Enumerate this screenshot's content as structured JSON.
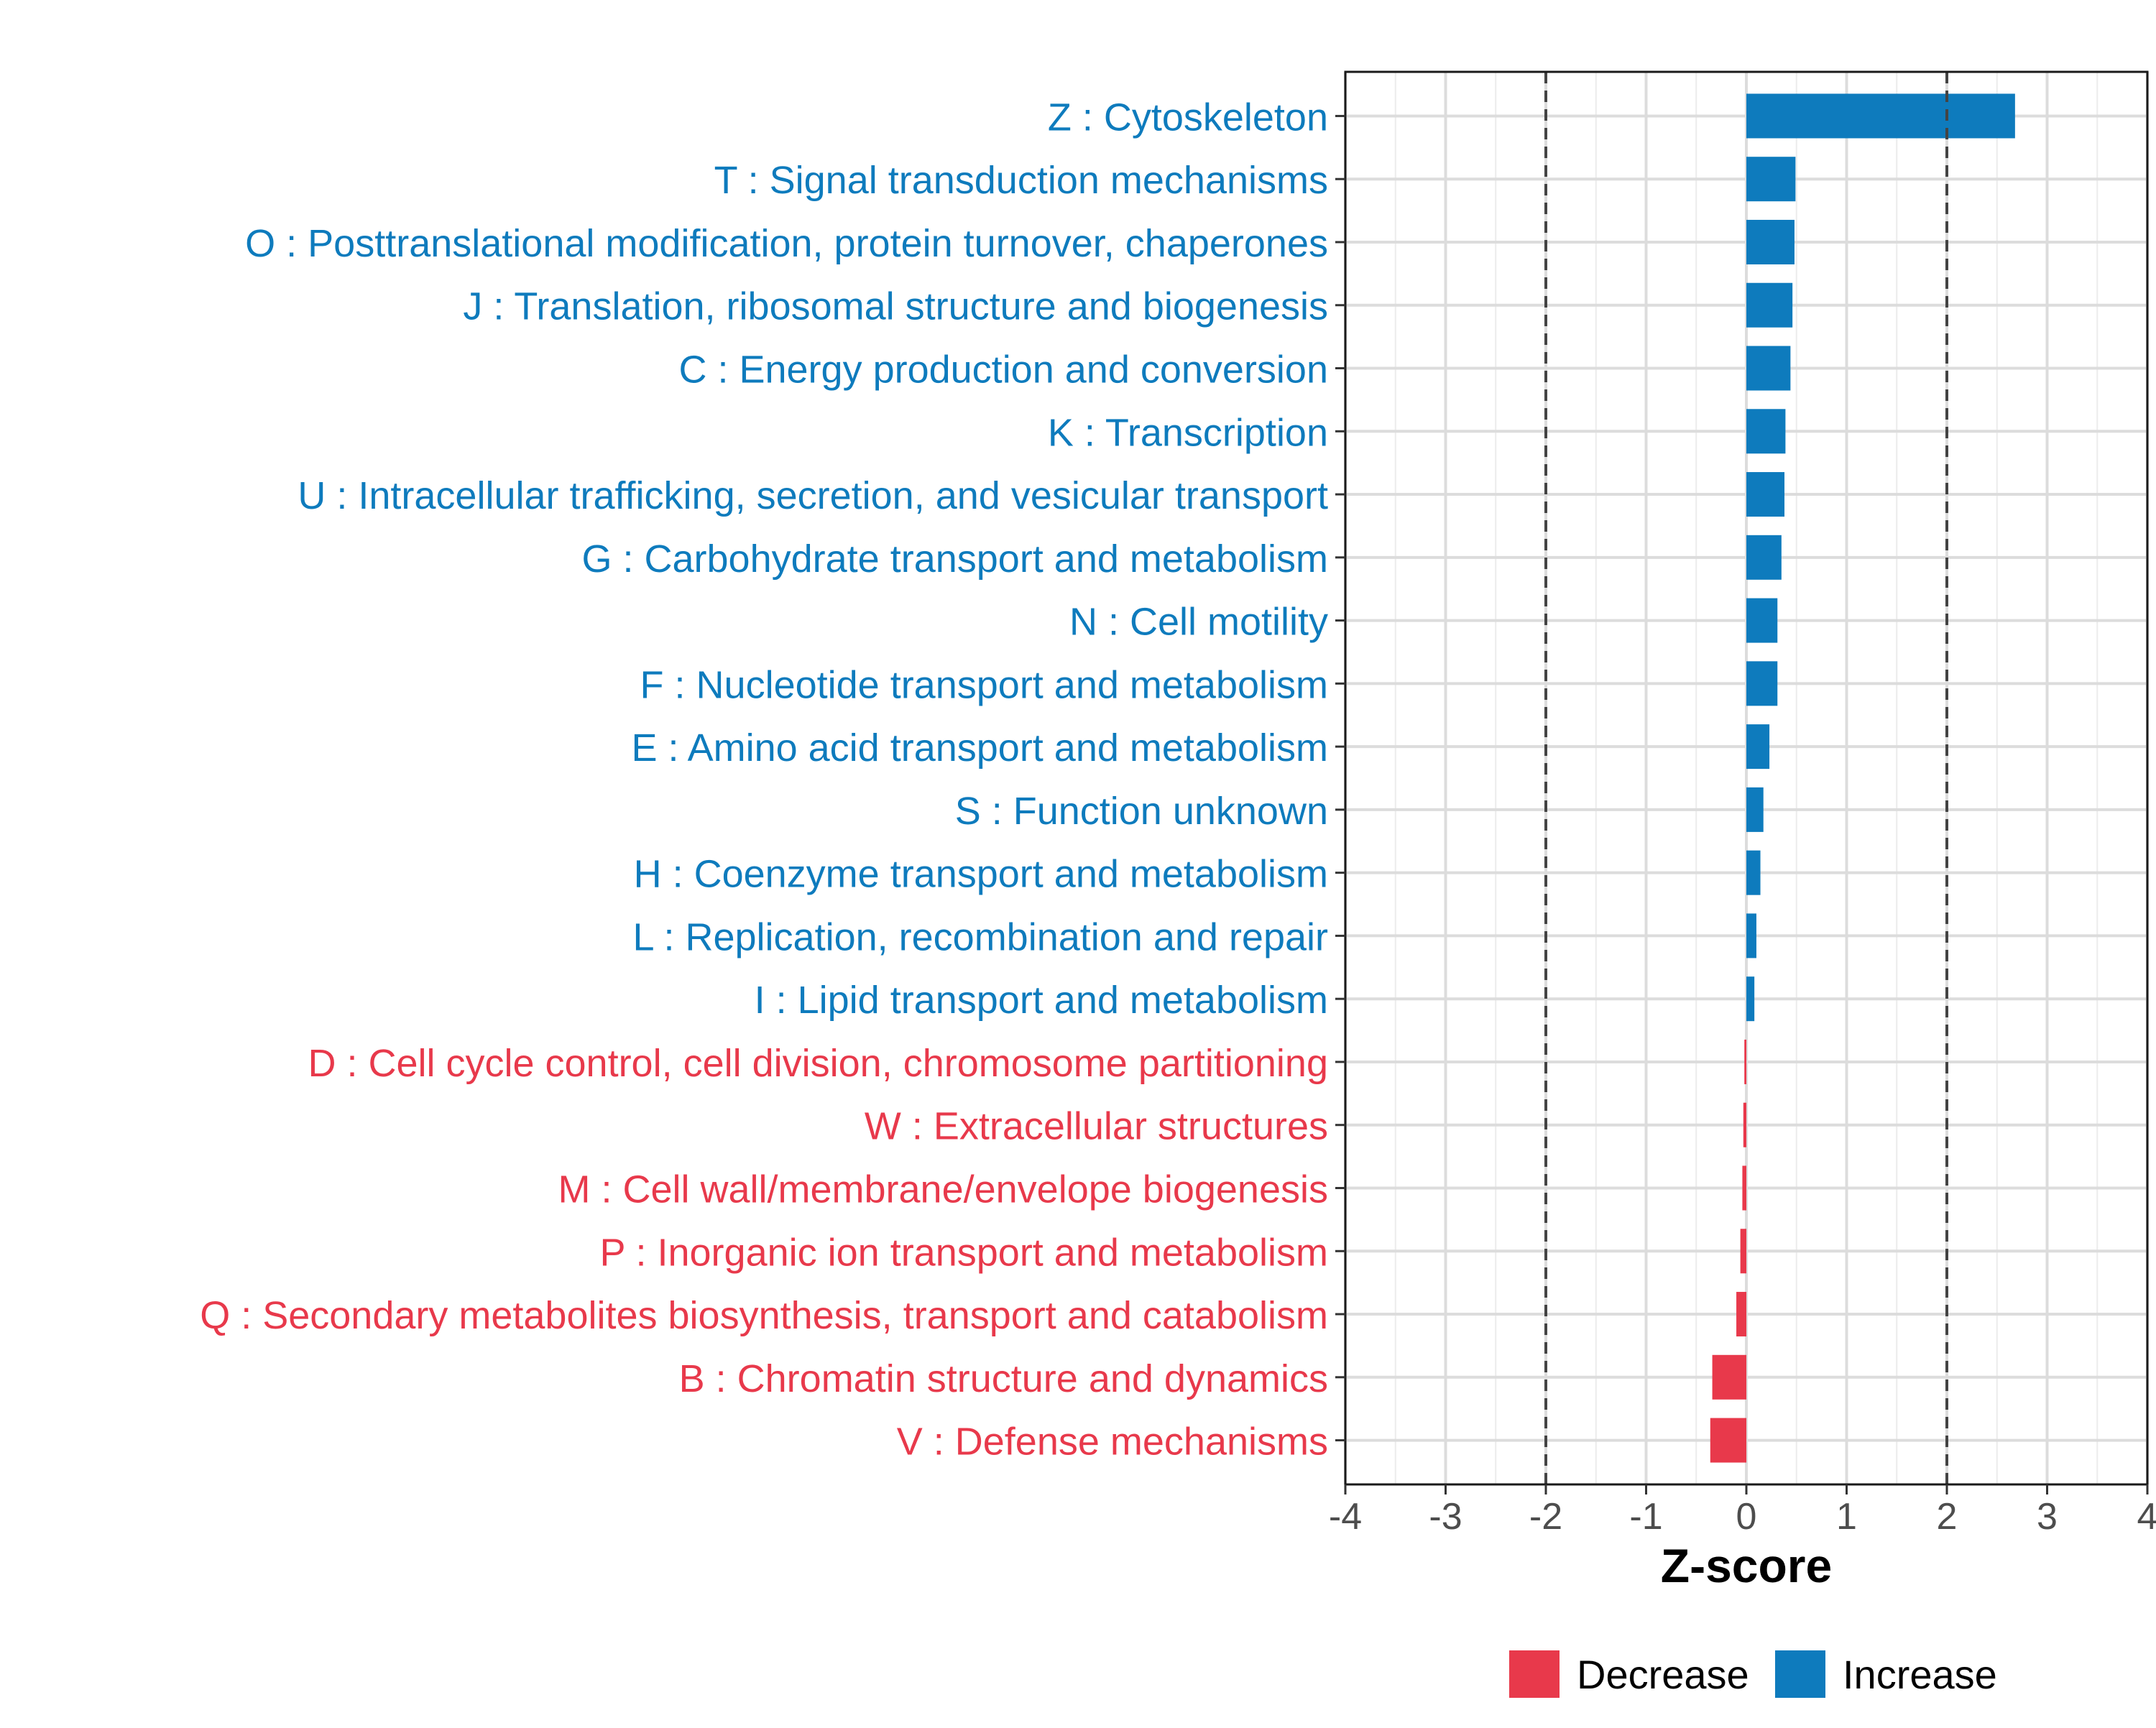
{
  "chart_data": {
    "type": "bar",
    "orientation": "horizontal",
    "title": "",
    "xlabel": "Z-score",
    "ylabel": "",
    "xlim": [
      -4,
      4
    ],
    "xticks": [
      -4,
      -3,
      -2,
      -1,
      0,
      1,
      2,
      3,
      4
    ],
    "xtick_labels": [
      "-4",
      "-3",
      "-2",
      "-1",
      "0",
      "1",
      "2",
      "3",
      "4"
    ],
    "threshold_lines": [
      -2,
      2
    ],
    "grid": true,
    "legend_position": "bottom",
    "colors": {
      "Increase": "#0e7bbd",
      "Decrease": "#e8394b"
    },
    "legend": [
      {
        "label": "Decrease",
        "color": "#e8394b"
      },
      {
        "label": "Increase",
        "color": "#0e7bbd"
      }
    ],
    "categories": [
      "Z : Cytoskeleton",
      "T : Signal transduction mechanisms",
      "O : Posttranslational modification, protein turnover, chaperones",
      "J : Translation, ribosomal structure and biogenesis",
      "C : Energy production and conversion",
      "K : Transcription",
      "U : Intracellular trafficking, secretion, and vesicular transport",
      "G : Carbohydrate transport and metabolism",
      "N : Cell motility",
      "F : Nucleotide transport and metabolism",
      "E : Amino acid transport and metabolism",
      "S : Function unknown",
      "H : Coenzyme transport and metabolism",
      "L : Replication, recombination and repair",
      "I : Lipid transport and metabolism",
      "D : Cell cycle control, cell division, chromosome partitioning",
      "W : Extracellular structures",
      "M : Cell wall/membrane/envelope biogenesis",
      "P : Inorganic ion transport and metabolism",
      "Q : Secondary metabolites biosynthesis, transport and catabolism",
      "B : Chromatin structure and dynamics",
      "V : Defense mechanisms"
    ],
    "values": [
      2.68,
      0.49,
      0.48,
      0.46,
      0.44,
      0.39,
      0.38,
      0.35,
      0.31,
      0.31,
      0.23,
      0.17,
      0.14,
      0.1,
      0.08,
      -0.02,
      -0.03,
      -0.04,
      -0.06,
      -0.1,
      -0.34,
      -0.36
    ],
    "groups": [
      "Increase",
      "Increase",
      "Increase",
      "Increase",
      "Increase",
      "Increase",
      "Increase",
      "Increase",
      "Increase",
      "Increase",
      "Increase",
      "Increase",
      "Increase",
      "Increase",
      "Increase",
      "Decrease",
      "Decrease",
      "Decrease",
      "Decrease",
      "Decrease",
      "Decrease",
      "Decrease"
    ]
  }
}
